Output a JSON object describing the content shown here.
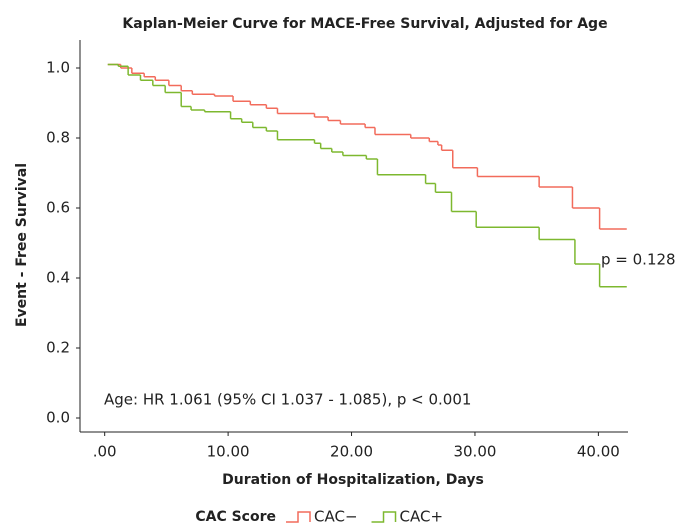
{
  "chart_data": {
    "type": "step",
    "title": "Kaplan-Meier Curve for MACE-Free Survival, Adjusted for Age",
    "x_label": "Duration of Hospitalization, Days",
    "y_label": "Event - Free Survival",
    "legend_title": "CAC Score",
    "annotations": [
      "p = 0.128",
      "Age: HR 1.061 (95% CI 1.037 - 1.085), p < 0.001"
    ],
    "xlim": [
      -2,
      42.4
    ],
    "ylim": [
      -0.04,
      1.08
    ],
    "xticks": [
      {
        "value": 0,
        "label": ".00"
      },
      {
        "value": 10,
        "label": "10.00"
      },
      {
        "value": 20,
        "label": "20.00"
      },
      {
        "value": 30,
        "label": "30.00"
      },
      {
        "value": 40,
        "label": "40.00"
      }
    ],
    "yticks": [
      {
        "value": 0,
        "label": "0.0"
      },
      {
        "value": 0.2,
        "label": "0.2"
      },
      {
        "value": 0.4,
        "label": "0.4"
      },
      {
        "value": 0.6,
        "label": "0.6"
      },
      {
        "value": 0.8,
        "label": "0.8"
      },
      {
        "value": 1,
        "label": "1.0"
      }
    ],
    "series": [
      {
        "name": "CAC−",
        "color": "#f26b5b",
        "x": [
          0.25,
          1.3,
          2.2,
          3.2,
          4.1,
          5.2,
          6.2,
          7.1,
          8.9,
          10.4,
          11.8,
          13.1,
          14.0,
          17.0,
          18.1,
          19.1,
          21.1,
          21.9,
          24.8,
          26.3,
          27.0,
          27.3,
          28.2,
          30.2,
          35.2,
          37.9,
          40.1,
          42.3
        ],
        "values": [
          1.01,
          1.0,
          0.985,
          0.975,
          0.965,
          0.95,
          0.935,
          0.925,
          0.92,
          0.905,
          0.895,
          0.885,
          0.87,
          0.86,
          0.85,
          0.84,
          0.83,
          0.81,
          0.8,
          0.79,
          0.78,
          0.765,
          0.715,
          0.69,
          0.66,
          0.6,
          0.54,
          0.54
        ]
      },
      {
        "name": "CAC+",
        "color": "#7db82f",
        "x": [
          0.25,
          1.1,
          1.9,
          2.9,
          3.9,
          4.9,
          6.2,
          7.0,
          8.1,
          10.2,
          11.1,
          12.0,
          13.1,
          14.0,
          17.0,
          17.5,
          18.4,
          19.3,
          21.2,
          22.1,
          26.0,
          26.8,
          28.1,
          30.1,
          35.2,
          38.1,
          40.1,
          42.3
        ],
        "values": [
          1.01,
          1.005,
          0.98,
          0.965,
          0.95,
          0.93,
          0.89,
          0.88,
          0.875,
          0.855,
          0.845,
          0.83,
          0.82,
          0.795,
          0.785,
          0.77,
          0.76,
          0.75,
          0.74,
          0.695,
          0.67,
          0.645,
          0.59,
          0.545,
          0.51,
          0.44,
          0.375,
          0.375
        ]
      }
    ]
  }
}
